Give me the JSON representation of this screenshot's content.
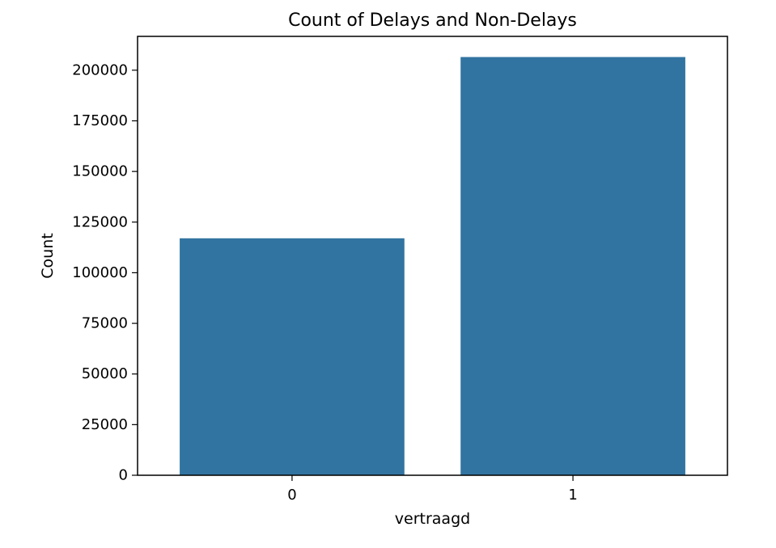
{
  "chart_data": {
    "type": "bar",
    "title": "Count of Delays and Non-Delays",
    "xlabel": "vertraagd",
    "ylabel": "Count",
    "categories": [
      "0",
      "1"
    ],
    "values": [
      117000,
      206500
    ],
    "ylim": [
      0,
      216700
    ],
    "yticks": [
      0,
      25000,
      50000,
      75000,
      100000,
      125000,
      150000,
      175000,
      200000
    ],
    "grid": false,
    "legend": "none",
    "colors": {
      "bar": "#3274a1",
      "axis": "#000000",
      "background": "#ffffff"
    }
  }
}
